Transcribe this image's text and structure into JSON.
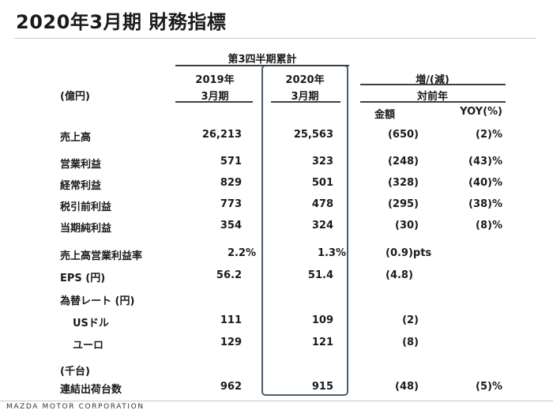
{
  "title": "2020年3月期 財務指標",
  "header": {
    "period_group": "第3四半期累計",
    "col_2019_line1": "2019年",
    "col_2019_line2": "3月期",
    "col_2020_line1": "2020年",
    "col_2020_line2": "3月期",
    "change_line1": "増/(減)",
    "change_line2": "対前年",
    "unit": "(億円)",
    "amount": "金額",
    "yoy": "YOY(%)"
  },
  "rows": [
    {
      "label": "売上高",
      "v2019": "26,213",
      "v2020": "25,563",
      "amount": "(650)",
      "yoy": "(2)%"
    },
    {
      "label": "営業利益",
      "v2019": "571",
      "v2020": "323",
      "amount": "(248)",
      "yoy": "(43)%"
    },
    {
      "label": "経常利益",
      "v2019": "829",
      "v2020": "501",
      "amount": "(328)",
      "yoy": "(40)%"
    },
    {
      "label": "税引前利益",
      "v2019": "773",
      "v2020": "478",
      "amount": "(295)",
      "yoy": "(38)%"
    },
    {
      "label": "当期純利益",
      "v2019": "354",
      "v2020": "324",
      "amount": "(30)",
      "yoy": "(8)%"
    },
    {
      "label": "売上高営業利益率",
      "v2019": "2.2%",
      "v2020": "1.3%",
      "amount": "(0.9)pts",
      "yoy": ""
    },
    {
      "label": "EPS (円)",
      "v2019": "56.2",
      "v2020": "51.4",
      "amount": "(4.8)",
      "yoy": ""
    },
    {
      "label": "為替レート (円)",
      "v2019": "",
      "v2020": "",
      "amount": "",
      "yoy": ""
    },
    {
      "label": "USドル",
      "v2019": "111",
      "v2020": "109",
      "amount": "(2)",
      "yoy": ""
    },
    {
      "label": "ユーロ",
      "v2019": "129",
      "v2020": "121",
      "amount": "(8)",
      "yoy": ""
    },
    {
      "label": "(千台)",
      "v2019": "",
      "v2020": "",
      "amount": "",
      "yoy": ""
    },
    {
      "label": "連結出荷台数",
      "v2019": "962",
      "v2020": "915",
      "amount": "(48)",
      "yoy": "(5)%"
    }
  ],
  "footer": "MAZDA MOTOR CORPORATION"
}
